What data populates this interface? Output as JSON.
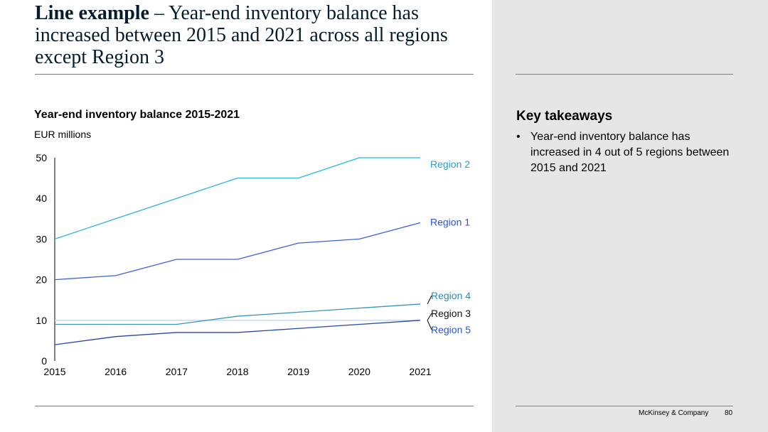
{
  "slide": {
    "title_bold": "Line example",
    "title_rest": " – Year-end inventory balance has increased between 2015 and 2021 across all regions except Region 3",
    "footer_brand": "McKinsey & Company",
    "page_number": "80"
  },
  "takeaways": {
    "title": "Key takeaways",
    "items": [
      "Year-end inventory balance has increased in 4 out of 5 regions between 2015 and 2021"
    ]
  },
  "chart_data": {
    "type": "line",
    "title": "Year-end inventory balance 2015-2021",
    "ylabel": "EUR millions",
    "xlabel": "",
    "x": [
      "2015",
      "2016",
      "2017",
      "2018",
      "2019",
      "2020",
      "2021"
    ],
    "ylim": [
      0,
      50
    ],
    "yticks": [
      0,
      10,
      20,
      30,
      40,
      50
    ],
    "grid": false,
    "series": [
      {
        "name": "Region 2",
        "color": "#29b6e0",
        "label_color": "#1fa2d6",
        "values": [
          30,
          35,
          40,
          45,
          45,
          50,
          50
        ]
      },
      {
        "name": "Region 1",
        "color": "#3c63d8",
        "label_color": "#2b55d3",
        "values": [
          20,
          21,
          25,
          25,
          29,
          30,
          34
        ]
      },
      {
        "name": "Region 4",
        "color": "#3a93b8",
        "label_color": "#2e8cb5",
        "values": [
          9,
          9,
          9,
          11,
          12,
          13,
          14
        ]
      },
      {
        "name": "Region 3",
        "color": "#c6d7e6",
        "label_color": "#111111",
        "values": [
          10,
          10,
          10,
          10,
          10,
          10,
          10
        ]
      },
      {
        "name": "Region 5",
        "color": "#2547a8",
        "label_color": "#2b55d3",
        "values": [
          4,
          6,
          7,
          7,
          8,
          9,
          10
        ]
      }
    ]
  }
}
